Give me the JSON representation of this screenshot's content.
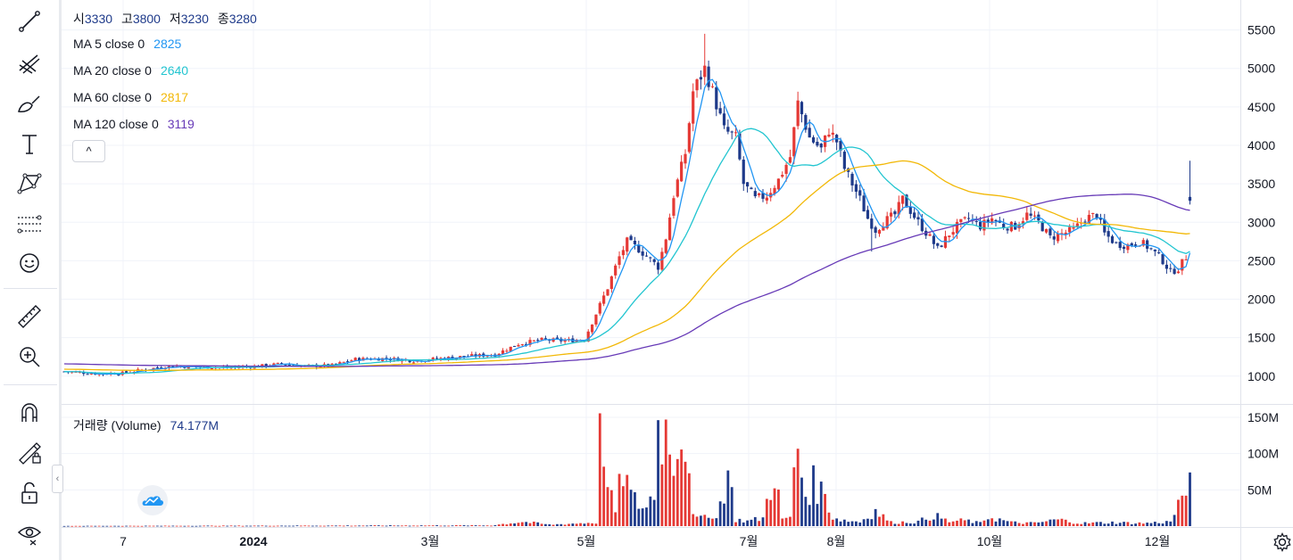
{
  "ohlc": {
    "open_label": "시",
    "open": "3330",
    "high_label": "고",
    "high": "3800",
    "low_label": "저",
    "low": "3230",
    "close_label": "종",
    "close": "3280"
  },
  "indicators": [
    {
      "label": "MA 5 close 0",
      "value": "2825",
      "color": "#2196f3"
    },
    {
      "label": "MA 20 close 0",
      "value": "2640",
      "color": "#22c5d0"
    },
    {
      "label": "MA 60 close 0",
      "value": "2817",
      "color": "#f2b807"
    },
    {
      "label": "MA 120 close 0",
      "value": "3119",
      "color": "#673ab7"
    }
  ],
  "volume_legend": {
    "label": "거래량 (Volume)",
    "value": "74.177M"
  },
  "collapse_glyph": "^",
  "side_handle_glyph": "‹",
  "colors": {
    "up": "#e53935",
    "down": "#1e3a8a",
    "grid": "#f0f3fa",
    "axis_text": "#131722"
  },
  "icons": [
    "trend-line-icon",
    "pitchfork-icon",
    "brush-icon",
    "text-icon",
    "pattern-icon",
    "forecast-icon",
    "emoji-icon",
    "ruler-icon",
    "zoom-in-icon",
    "magnet-icon",
    "lock-drawing-icon",
    "unlock-icon",
    "eye-icon",
    "settings-icon",
    "tradingview-logo-icon"
  ],
  "chart_data": {
    "type": "candlestick",
    "price_axis": {
      "ticks": [
        5500,
        5000,
        4500,
        4000,
        3500,
        3000,
        2500,
        2000,
        1500,
        1000
      ],
      "range": [
        650,
        5750
      ],
      "scale": "linear"
    },
    "volume_axis": {
      "ticks": [
        "150M",
        "100M",
        "50M"
      ],
      "tick_values": [
        150,
        100,
        50
      ],
      "range": [
        0,
        150
      ],
      "unit": "M"
    },
    "time_axis": {
      "labels": [
        "7",
        "2024",
        "3월",
        "5월",
        "7월",
        "8월",
        "10월",
        "12월"
      ],
      "bold": [
        false,
        true,
        false,
        false,
        false,
        false,
        false,
        false
      ]
    },
    "grid": true,
    "ma_lines": [
      {
        "period": 5,
        "color": "#2196f3"
      },
      {
        "period": 20,
        "color": "#22c5d0"
      },
      {
        "period": 60,
        "color": "#f2b807"
      },
      {
        "period": 120,
        "color": "#673ab7"
      }
    ],
    "price_anchors": [
      [
        0,
        1060
      ],
      [
        9,
        1030
      ],
      [
        15,
        1040
      ],
      [
        21,
        1090
      ],
      [
        27,
        1130
      ],
      [
        35,
        1120
      ],
      [
        42,
        1110
      ],
      [
        50,
        1130
      ],
      [
        56,
        1160
      ],
      [
        62,
        1130
      ],
      [
        69,
        1140
      ],
      [
        75,
        1220
      ],
      [
        83,
        1230
      ],
      [
        90,
        1200
      ],
      [
        97,
        1230
      ],
      [
        104,
        1260
      ],
      [
        111,
        1280
      ],
      [
        117,
        1420
      ],
      [
        123,
        1470
      ],
      [
        129,
        1460
      ],
      [
        134,
        1480
      ],
      [
        136,
        1700
      ],
      [
        140,
        2150
      ],
      [
        143,
        2550
      ],
      [
        145,
        2750
      ],
      [
        148,
        2650
      ],
      [
        150,
        2560
      ],
      [
        153,
        2420
      ],
      [
        155,
        2800
      ],
      [
        157,
        3350
      ],
      [
        160,
        3900
      ],
      [
        162,
        4700
      ],
      [
        165,
        5000
      ],
      [
        167,
        4700
      ],
      [
        170,
        4200
      ],
      [
        173,
        4100
      ],
      [
        175,
        3500
      ],
      [
        178,
        3300
      ],
      [
        181,
        3350
      ],
      [
        184,
        3550
      ],
      [
        187,
        3850
      ],
      [
        189,
        4550
      ],
      [
        192,
        4100
      ],
      [
        195,
        3950
      ],
      [
        197,
        4200
      ],
      [
        199,
        4050
      ],
      [
        201,
        3700
      ],
      [
        203,
        3500
      ],
      [
        205,
        3300
      ],
      [
        207,
        3050
      ],
      [
        209,
        2900
      ],
      [
        211,
        3000
      ],
      [
        214,
        3100
      ],
      [
        216,
        3300
      ],
      [
        218,
        3150
      ],
      [
        220,
        3000
      ],
      [
        223,
        2800
      ],
      [
        225,
        2650
      ],
      [
        228,
        2850
      ],
      [
        230,
        2950
      ],
      [
        233,
        3050
      ],
      [
        236,
        2950
      ],
      [
        239,
        3050
      ],
      [
        242,
        2950
      ],
      [
        245,
        2950
      ],
      [
        248,
        3100
      ],
      [
        251,
        3000
      ],
      [
        254,
        2800
      ],
      [
        257,
        2850
      ],
      [
        260,
        2900
      ],
      [
        263,
        3050
      ],
      [
        266,
        3100
      ],
      [
        268,
        2850
      ],
      [
        271,
        2720
      ],
      [
        274,
        2700
      ],
      [
        277,
        2750
      ],
      [
        280,
        2650
      ],
      [
        283,
        2500
      ],
      [
        285,
        2350
      ],
      [
        287,
        2400
      ],
      [
        289,
        2550
      ],
      [
        290,
        3280
      ]
    ],
    "volume_anchors": [
      [
        0,
        0.3
      ],
      [
        110,
        1
      ],
      [
        118,
        6
      ],
      [
        125,
        2
      ],
      [
        137,
        5
      ],
      [
        138,
        116
      ],
      [
        139,
        125
      ],
      [
        140,
        50
      ],
      [
        142,
        20
      ],
      [
        144,
        80
      ],
      [
        146,
        40
      ],
      [
        148,
        30
      ],
      [
        150,
        25
      ],
      [
        152,
        50
      ],
      [
        153,
        140
      ],
      [
        155,
        130
      ],
      [
        157,
        100
      ],
      [
        158,
        135
      ],
      [
        159,
        125
      ],
      [
        161,
        110
      ],
      [
        162,
        12
      ],
      [
        164,
        10
      ],
      [
        166,
        20
      ],
      [
        168,
        10
      ],
      [
        171,
        75
      ],
      [
        173,
        9
      ],
      [
        176,
        7
      ],
      [
        180,
        11
      ],
      [
        183,
        78
      ],
      [
        185,
        8
      ],
      [
        187,
        13
      ],
      [
        189,
        115
      ],
      [
        190,
        70
      ],
      [
        191,
        45
      ],
      [
        193,
        58
      ],
      [
        196,
        43
      ],
      [
        198,
        12
      ],
      [
        201,
        8
      ],
      [
        205,
        6
      ],
      [
        209,
        21
      ],
      [
        213,
        5
      ],
      [
        220,
        6
      ],
      [
        224,
        15
      ],
      [
        228,
        6
      ],
      [
        232,
        8
      ],
      [
        236,
        4
      ],
      [
        238,
        13
      ],
      [
        244,
        5
      ],
      [
        250,
        4
      ],
      [
        256,
        9
      ],
      [
        262,
        4
      ],
      [
        270,
        5
      ],
      [
        278,
        4
      ],
      [
        285,
        6
      ],
      [
        288,
        42
      ],
      [
        289,
        42
      ],
      [
        290,
        74
      ]
    ],
    "last_volume": "74.177M"
  }
}
